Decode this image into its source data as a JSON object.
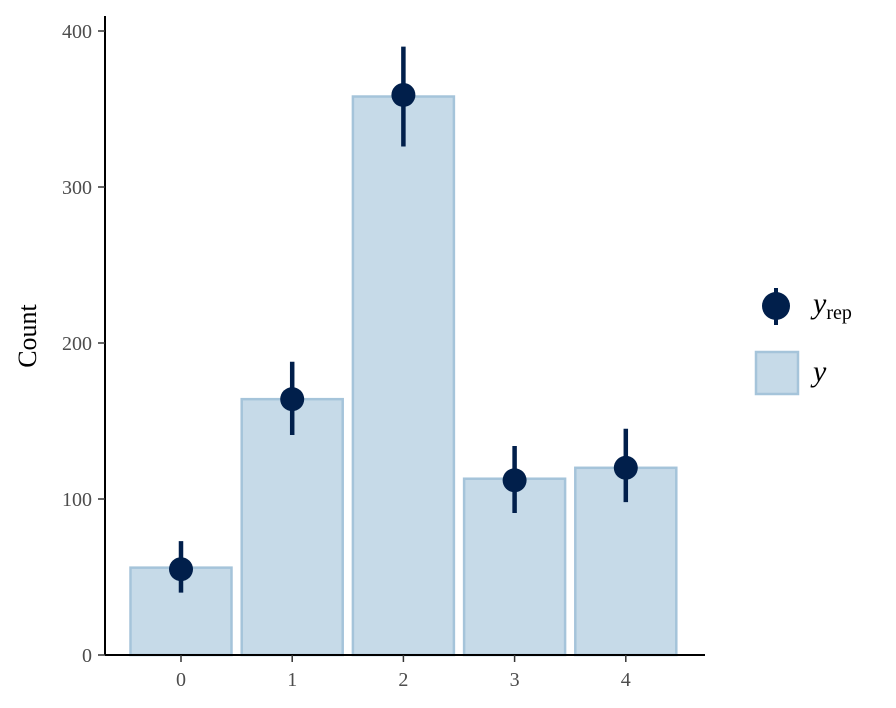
{
  "chart_data": {
    "type": "bar",
    "categories": [
      "0",
      "1",
      "2",
      "3",
      "4"
    ],
    "series": [
      {
        "name": "y",
        "values": [
          56,
          164,
          358,
          113,
          120
        ]
      },
      {
        "name": "y_rep",
        "values": [
          55,
          164,
          359,
          112,
          120
        ],
        "lower": [
          40,
          141,
          326,
          91,
          98
        ],
        "upper": [
          73,
          188,
          390,
          134,
          145
        ]
      }
    ],
    "xlabel": "",
    "ylabel": "Count",
    "ylim": [
      0,
      400
    ],
    "yticks": [
      "0",
      "100",
      "200",
      "300",
      "400"
    ],
    "legend": {
      "placement": "right",
      "items": [
        {
          "key": "yrep",
          "label_main": "y",
          "label_sub": "rep"
        },
        {
          "key": "y",
          "label_main": "y",
          "label_sub": ""
        }
      ]
    },
    "grid": false
  },
  "colors": {
    "bar_fill": "#c6dae8",
    "bar_stroke": "#a5c4da",
    "point": "#011f4b",
    "axis": "#000000"
  }
}
